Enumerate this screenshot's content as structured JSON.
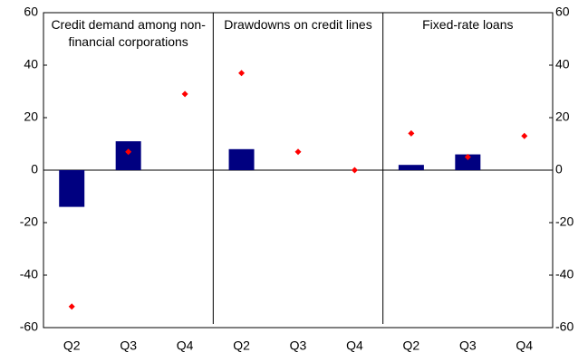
{
  "chart_data": {
    "type": "bar",
    "panels": [
      {
        "title": "Credit demand among non-financial corporations",
        "categories": [
          "Q2",
          "Q3",
          "Q4"
        ],
        "series": [
          {
            "type": "bar",
            "color": "#000080",
            "values": [
              -14,
              11,
              null
            ]
          },
          {
            "type": "scatter",
            "color": "#ff0000",
            "values": [
              -52,
              7,
              29
            ]
          }
        ]
      },
      {
        "title": "Drawdowns on credit lines",
        "categories": [
          "Q2",
          "Q3",
          "Q4"
        ],
        "series": [
          {
            "type": "bar",
            "color": "#000080",
            "values": [
              8,
              null,
              null
            ]
          },
          {
            "type": "scatter",
            "color": "#ff0000",
            "values": [
              37,
              7,
              0
            ]
          }
        ]
      },
      {
        "title": "Fixed-rate loans",
        "categories": [
          "Q2",
          "Q3",
          "Q4"
        ],
        "series": [
          {
            "type": "bar",
            "color": "#000080",
            "values": [
              2,
              6,
              null
            ]
          },
          {
            "type": "scatter",
            "color": "#ff0000",
            "values": [
              14,
              5,
              13
            ]
          }
        ]
      }
    ],
    "ylim": [
      -60,
      60
    ],
    "yticks": [
      -60,
      -40,
      -20,
      0,
      20,
      40,
      60
    ],
    "y2lim": [
      -60,
      60
    ],
    "y2ticks": [
      -60,
      -40,
      -20,
      0,
      20,
      40,
      60
    ]
  }
}
